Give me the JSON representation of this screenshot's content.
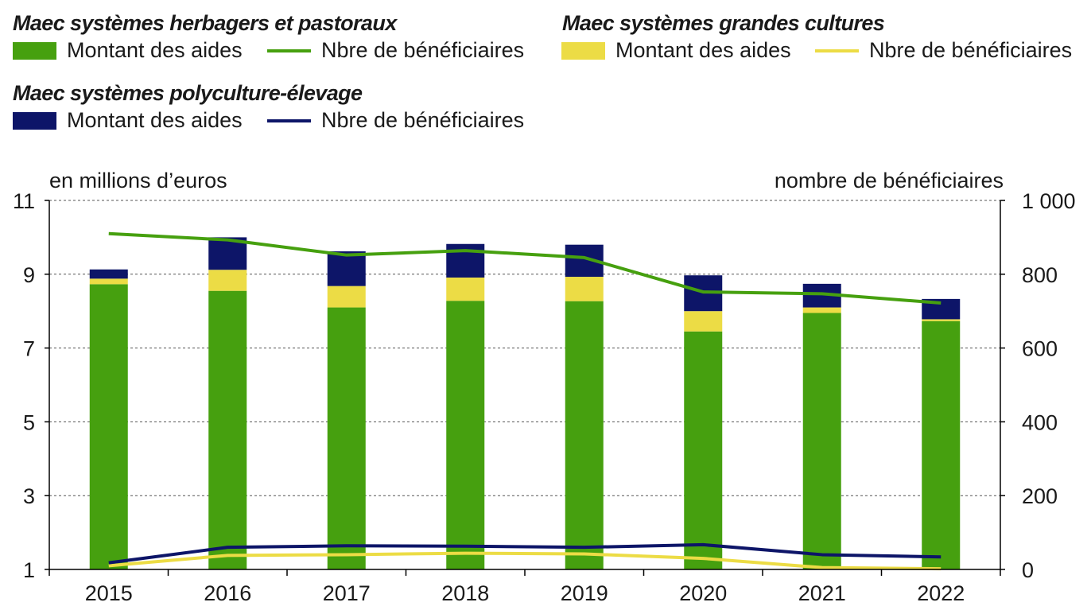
{
  "legend": {
    "group_herb": {
      "title": "Maec systèmes herbagers et pastoraux",
      "bar_label": "Montant des aides",
      "line_label": "Nbre de bénéficiaires"
    },
    "group_gc": {
      "title": "Maec systèmes grandes cultures",
      "bar_label": "Montant des aides",
      "line_label": "Nbre de bénéficiaires"
    },
    "group_poly": {
      "title": "Maec systèmes polyculture-élevage",
      "bar_label": "Montant des aides",
      "line_label": "Nbre de bénéficiaires"
    }
  },
  "colors": {
    "herb": "#46A00F",
    "gc": "#ECDC45",
    "poly": "#0D1568"
  },
  "chart_data": {
    "type": "bar",
    "stacked": true,
    "categories": [
      "2015",
      "2016",
      "2017",
      "2018",
      "2019",
      "2020",
      "2021",
      "2022"
    ],
    "ylabel": "en millions d’euros",
    "y2label": "nombre de bénéficiaires",
    "ylim": [
      1,
      11
    ],
    "yticks": [
      1,
      3,
      5,
      7,
      9,
      11
    ],
    "y2lim": [
      0,
      1000
    ],
    "y2ticks": [
      0,
      200,
      400,
      600,
      800,
      1000
    ],
    "y2tick_labels": [
      "0",
      "200",
      "400",
      "600",
      "800",
      "1 000"
    ],
    "grid": true,
    "series": [
      {
        "name": "Maec systèmes herbagers et pastoraux - Montant des aides",
        "kind": "bar",
        "axis": "left",
        "color_key": "herb",
        "values": [
          7.73,
          7.55,
          7.1,
          7.28,
          7.27,
          6.45,
          6.95,
          6.73
        ]
      },
      {
        "name": "Maec systèmes grandes cultures - Montant des aides",
        "kind": "bar",
        "axis": "left",
        "color_key": "gc",
        "values": [
          0.15,
          0.57,
          0.58,
          0.63,
          0.66,
          0.55,
          0.15,
          0.05
        ]
      },
      {
        "name": "Maec systèmes polyculture-élevage - Montant des aides",
        "kind": "bar",
        "axis": "left",
        "color_key": "poly",
        "values": [
          0.25,
          0.88,
          0.94,
          0.91,
          0.87,
          0.97,
          0.64,
          0.55
        ]
      },
      {
        "name": "Maec systèmes herbagers et pastoraux - Nbre de bénéficiaires",
        "kind": "line",
        "axis": "right",
        "color_key": "herb",
        "values": [
          910,
          893,
          852,
          864,
          845,
          752,
          747,
          722
        ]
      },
      {
        "name": "Maec systèmes grandes cultures - Nbre de bénéficiaires",
        "kind": "line",
        "axis": "right",
        "color_key": "gc",
        "values": [
          10,
          38,
          40,
          44,
          42,
          30,
          5,
          2
        ]
      },
      {
        "name": "Maec systèmes polyculture-élevage - Nbre de bénéficiaires",
        "kind": "line",
        "axis": "right",
        "color_key": "poly",
        "values": [
          18,
          60,
          64,
          63,
          60,
          67,
          40,
          34
        ]
      }
    ]
  }
}
